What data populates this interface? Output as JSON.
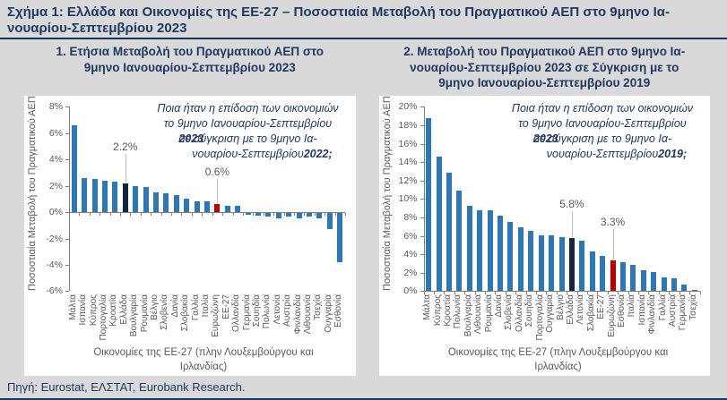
{
  "figure": {
    "title_lines": [
      "Σχήμα 1: Ελλάδα και Οικονομίες της ΕΕ-27 – Ποσοστιαία Μεταβολή του Πραγματικού ΑΕΠ στο 9μηνο Ια-",
      "νουαρίου-Σεπτεμβρίου 2023"
    ],
    "source": "Πηγή: Eurostat, ΕΛΣΤΑΤ, Eurobank Research."
  },
  "colors": {
    "background": "#d9d9d9",
    "panel_bg": "#ffffff",
    "navy_text": "#1f3864",
    "bar_blue": "#2e77b5",
    "bar_dark_navy": "#13253f",
    "bar_red": "#c00000",
    "axis_gray": "#7f7f7f",
    "tick_text": "#595959",
    "leader_line": "#bfbfbf",
    "rule": "#17375e"
  },
  "chart_data": [
    {
      "type": "bar",
      "panel_title_lines": [
        "1. Ετήσια Μεταβολή του Πραγματικού ΑΕΠ στο",
        "9μηνο Ιανουαρίου-Σεπτεμβρίου 2023"
      ],
      "ylabel": "Ποσοστιαία Μεταβολή του Πραγματικού ΑΕΠ",
      "xlabel_lines": [
        "Οικονομίες της ΕΕ-27 (πλην Λουξεμβούργου και",
        "Ιρλανδίας)"
      ],
      "ylim": [
        -6,
        8
      ],
      "ytick_step": 2,
      "grid": false,
      "legend": "none",
      "annotation_lines": [
        "Ποια ήταν η επίδοση των οικονομιών",
        "το 9μηνο Ιανουαρίου-Σεπτεμβρίου",
        "2023 σε σύγκριση με το 9μηνο Ια-",
        "νουαρίου-Σεπτεμβρίου 2022;"
      ],
      "bold_tokens": [
        "2023",
        "2022;"
      ],
      "categories": [
        "Μάλτα",
        "Ισπανία",
        "Κύπρος",
        "Πορτογαλία",
        "Κροατία",
        "Ελλάδα",
        "Βουλγαρία",
        "Ρουμανία",
        "Βέλγιο",
        "Σλοβενία",
        "Δανία",
        "Σλοβακία",
        "Γαλλία",
        "Ιταλία",
        "Ευρωζώνη",
        "ΕΕ-27",
        "Ολλανδία",
        "Γερμανία",
        "Σουηδία",
        "Πολωνία",
        "Λετονία",
        "Αυστρία",
        "Φινλανδία",
        "Λιθουανία",
        "Τσεχία",
        "Ουγγαρία",
        "Εσθονία"
      ],
      "values": [
        6.6,
        2.6,
        2.5,
        2.4,
        2.3,
        2.2,
        2.0,
        1.9,
        1.5,
        1.4,
        1.3,
        1.0,
        0.8,
        0.8,
        0.6,
        0.5,
        0.5,
        -0.1,
        -0.2,
        -0.3,
        -0.4,
        -0.3,
        -0.4,
        -0.3,
        -0.4,
        -1.2,
        -3.7
      ],
      "highlights": {
        "Ελλάδα": "#13253f",
        "Ευρωζώνη": "#c00000"
      },
      "callouts": [
        {
          "category": "Ελλάδα",
          "text": "2.2%",
          "label_y": 4.4
        },
        {
          "category": "Ευρωζώνη",
          "text": "0.6%",
          "label_y": 2.5
        }
      ]
    },
    {
      "type": "bar",
      "panel_title_lines": [
        "2. Μεταβολή του Πραγματικού ΑΕΠ στο 9μηνο Ια-",
        "νουαρίου-Σεπτεμβρίου 2023 σε Σύγκριση με το",
        "9μηνο Ιανουαρίου-Σεπτεμβρίου 2019"
      ],
      "ylabel": "Ποσοστιαία Μεταβολή του Πραγματικού ΑΕΠ",
      "xlabel_lines": [
        "Οικονομίες της ΕΕ-27 (πλην Λουξεμβούργου και",
        "Ιρλανδίας)"
      ],
      "ylim": [
        0,
        20
      ],
      "ytick_step": 2,
      "grid": false,
      "legend": "none",
      "annotation_lines": [
        "Ποια ήταν η επίδοση των οικονομιών",
        "το 9μηνο Ιανουαρίου-Σεπτεμβρίου",
        "2023 σε σύγκριση με το 9μηνο Ια-",
        "νουαρίου-Σεπτεμβρίου 2019;"
      ],
      "bold_tokens": [
        "2023",
        "2019;"
      ],
      "categories": [
        "Μάλτα",
        "Κύπρος",
        "Κροατία",
        "Πολωνία",
        "Βουλγαρία",
        "Λιθουανία",
        "Ρουμανία",
        "Δανία",
        "Σλοβενία",
        "Ολλανδία",
        "Σουηδία",
        "Πορτογαλία",
        "Ουγγαρία",
        "Βέλγιο",
        "Ελλάδα",
        "Λετονία",
        "Σλοβακία",
        "ΕΕ-27",
        "Ευρωζώνη",
        "Εσθονία",
        "Ιταλία",
        "Ισπανία",
        "Φινλανδία",
        "Γαλλία",
        "Αυστρία",
        "Γερμανία",
        "Τσεχία"
      ],
      "values": [
        18.8,
        14.6,
        12.9,
        10.9,
        9.3,
        8.8,
        8.8,
        8.2,
        7.5,
        6.9,
        6.5,
        6.1,
        6.1,
        5.9,
        5.8,
        5.5,
        4.3,
        3.8,
        3.3,
        3.1,
        2.9,
        2.3,
        2.1,
        1.5,
        1.4,
        0.7,
        0.1
      ],
      "highlights": {
        "Ελλάδα": "#13253f",
        "Ευρωζώνη": "#c00000"
      },
      "callouts": [
        {
          "category": "Ελλάδα",
          "text": "5.8%",
          "label_y": 8.7
        },
        {
          "category": "Ευρωζώνη",
          "text": "3.3%",
          "label_y": 6.7
        }
      ]
    }
  ]
}
